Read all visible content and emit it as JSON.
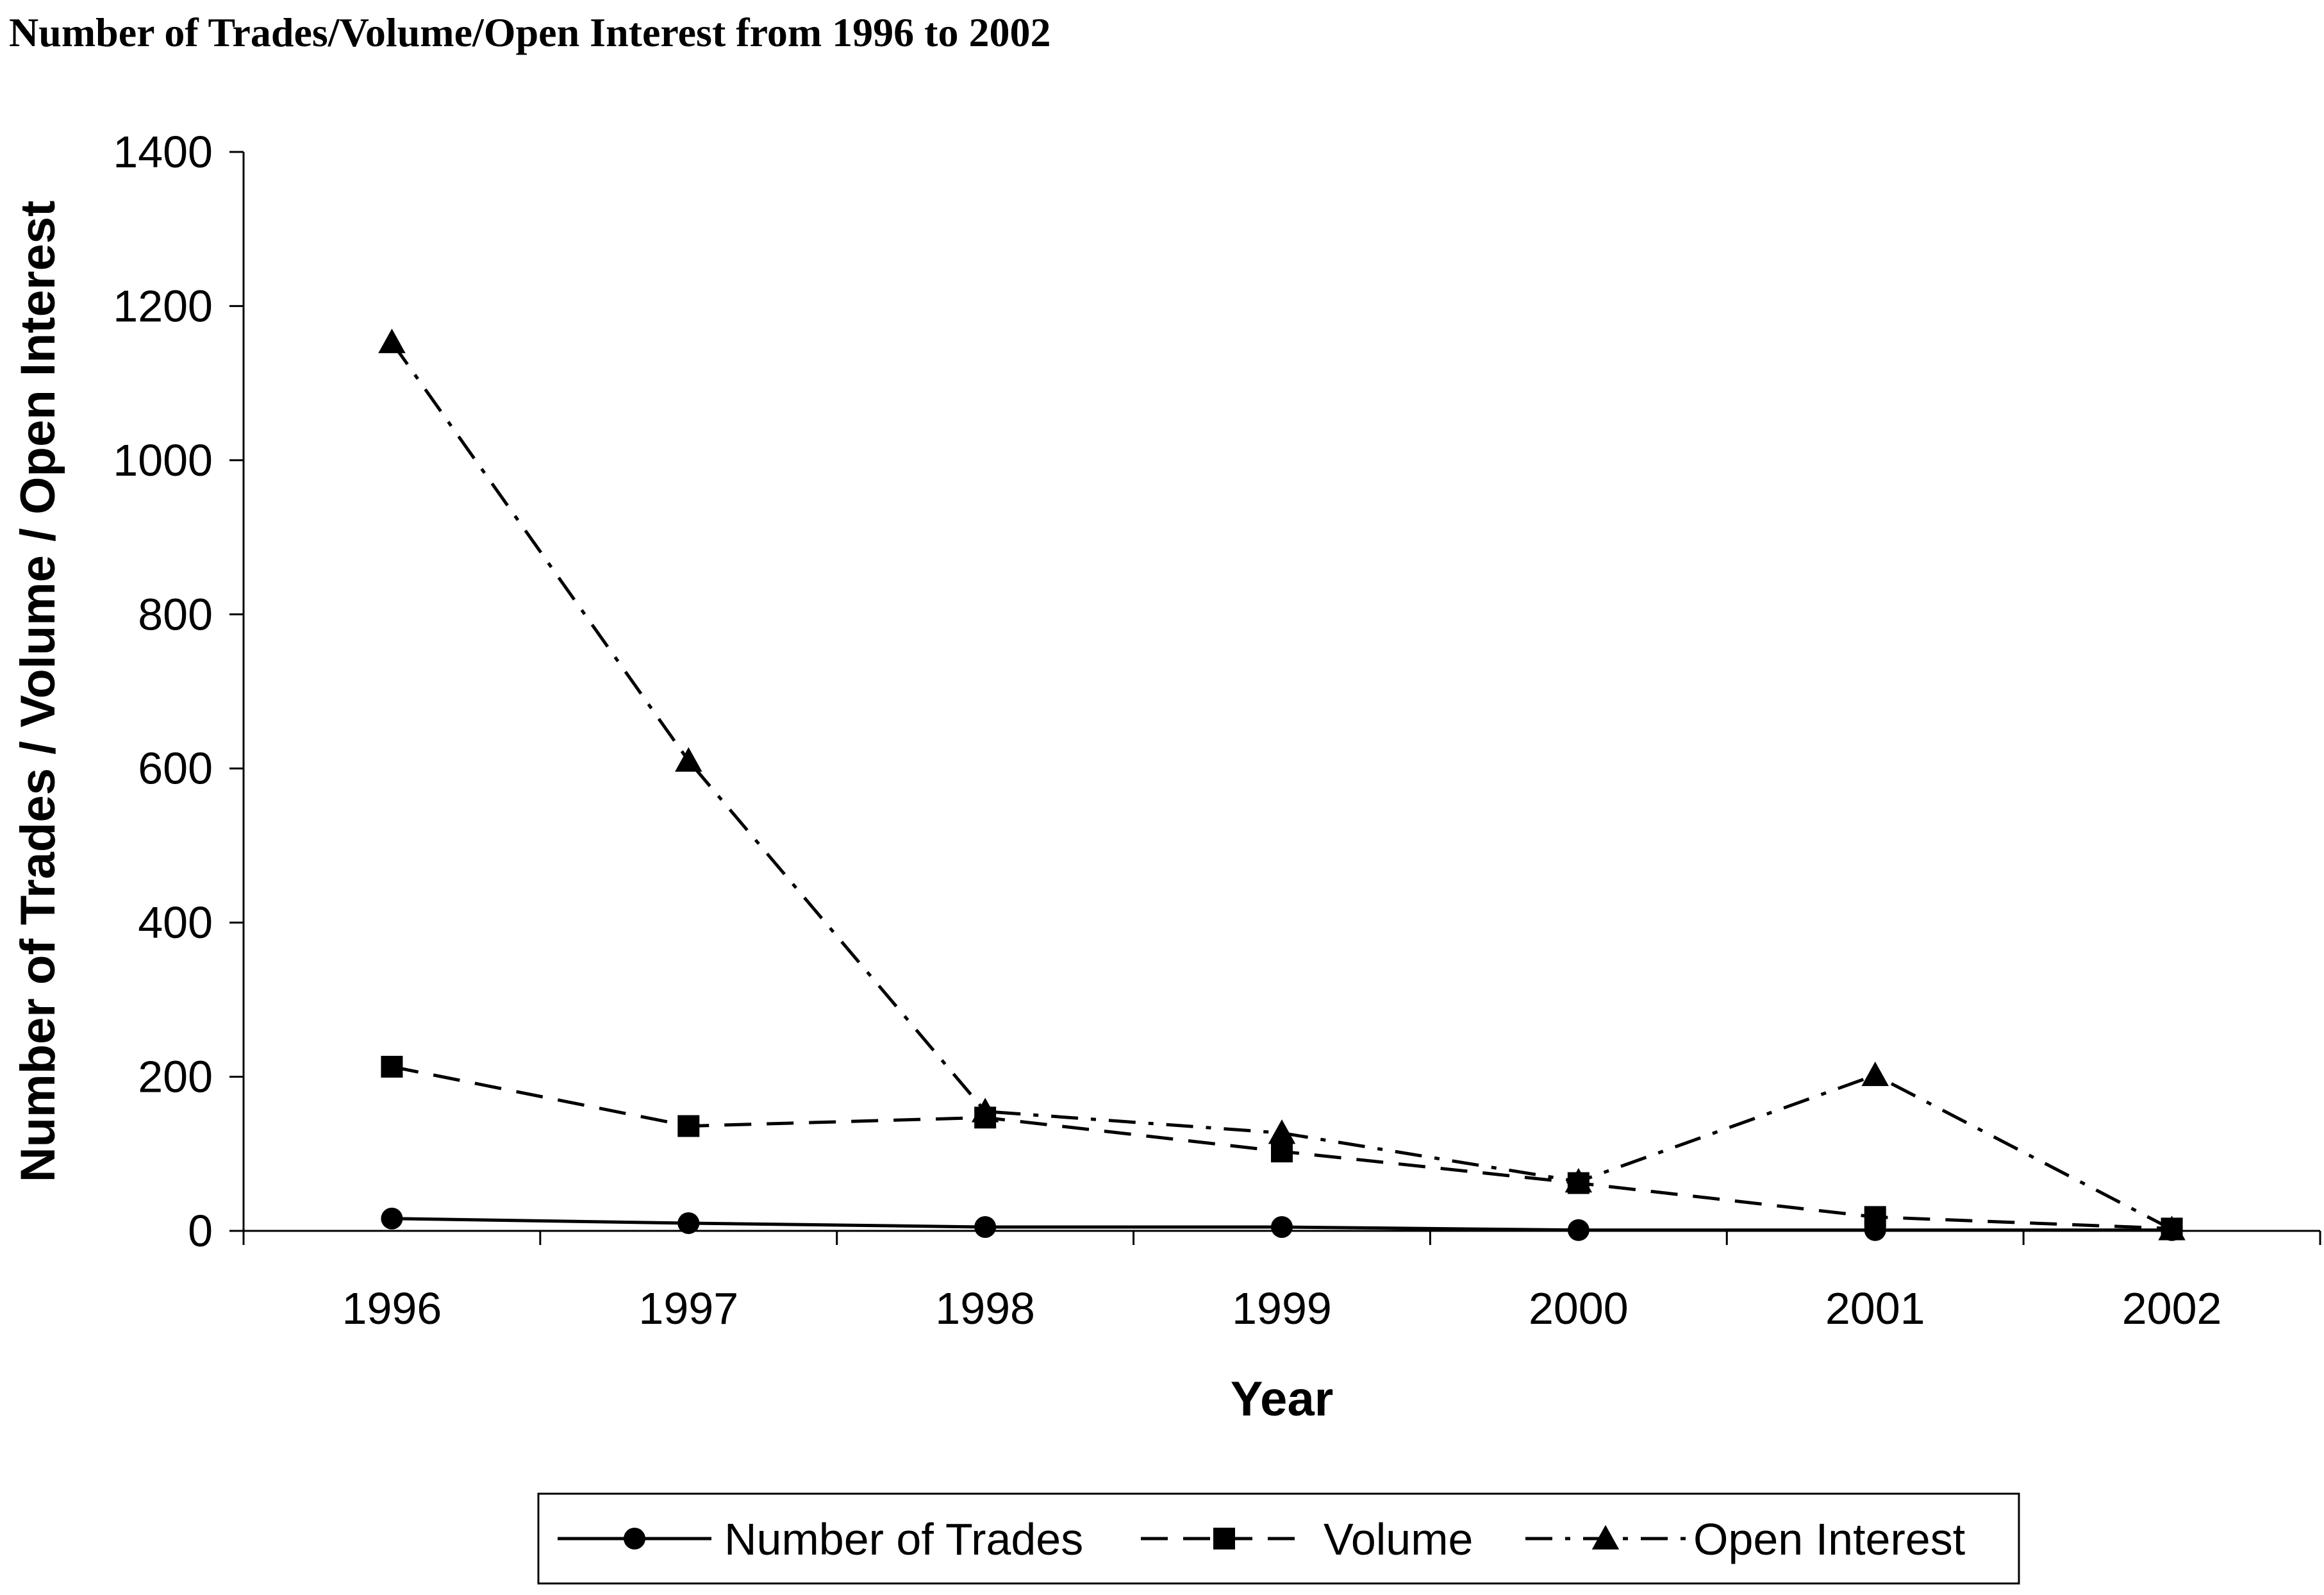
{
  "chart_data": {
    "type": "line",
    "title": "Number of Trades/Volume/Open Interest from 1996 to 2002",
    "xlabel": "Year",
    "ylabel": "Number of Trades / Volume / Open Interest",
    "categories": [
      "1996",
      "1997",
      "1998",
      "1999",
      "2000",
      "2001",
      "2002"
    ],
    "ylim": [
      0,
      1400
    ],
    "yticks": [
      0,
      200,
      400,
      600,
      800,
      1000,
      1200,
      1400
    ],
    "grid": false,
    "legend_position": "bottom",
    "series": [
      {
        "name": "Number of Trades",
        "values": [
          16,
          10,
          5,
          5,
          1,
          1,
          1
        ],
        "marker": "circle",
        "line_style": "solid",
        "color": "#000000"
      },
      {
        "name": "Volume",
        "values": [
          213,
          136,
          147,
          103,
          62,
          18,
          3
        ],
        "marker": "square",
        "line_style": "dashed",
        "color": "#000000"
      },
      {
        "name": "Open Interest",
        "values": [
          1153,
          610,
          155,
          127,
          64,
          202,
          2
        ],
        "marker": "triangle",
        "line_style": "dash-dot",
        "color": "#000000"
      }
    ]
  }
}
